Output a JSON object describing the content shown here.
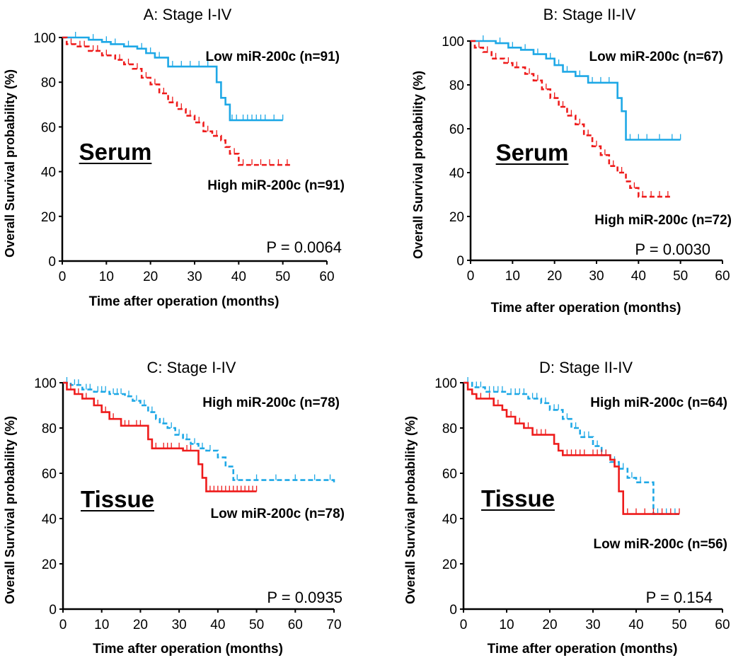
{
  "figure": {
    "colors": {
      "blue": "#1ea8e6",
      "red": "#ee1c1c"
    }
  },
  "chart_data": [
    {
      "type": "line",
      "panel": "A",
      "title": "A: Stage I-IV",
      "xlabel": "Time after operation (months)",
      "ylabel": "Overall Survival probability (%)",
      "xlim": [
        0,
        60
      ],
      "ylim": [
        0,
        100
      ],
      "xticks": [
        0,
        10,
        20,
        30,
        40,
        50,
        60
      ],
      "yticks": [
        0,
        20,
        40,
        60,
        80,
        100
      ],
      "sample_label": "Serum",
      "p_value": "P = 0.0064",
      "series": [
        {
          "name": "Low miR-200c (n=91)",
          "color": "#1ea8e6",
          "dash": false,
          "x": [
            0,
            6,
            9,
            11,
            14,
            17,
            19,
            21,
            24,
            34,
            35,
            36,
            37,
            38,
            50
          ],
          "y": [
            100,
            99,
            98,
            97,
            96,
            95,
            93,
            91,
            87,
            87,
            80,
            73,
            70,
            63,
            63
          ],
          "censor_x": [
            3,
            7,
            10,
            12,
            15,
            18,
            20,
            22,
            25,
            27,
            29,
            31,
            33,
            38.5,
            39.5,
            41,
            42,
            43,
            44,
            45,
            46,
            48,
            50
          ]
        },
        {
          "name": "High miR-200c (n=91)",
          "color": "#ee1c1c",
          "dash": true,
          "x": [
            0,
            1,
            3,
            6,
            9,
            12,
            14,
            16,
            18,
            20,
            22,
            24,
            26,
            28,
            30,
            32,
            34,
            36,
            37,
            38,
            40,
            52
          ],
          "y": [
            100,
            97,
            96,
            94,
            92,
            90,
            88,
            86,
            82,
            79,
            75,
            71,
            68,
            65,
            62,
            58,
            56,
            54,
            51,
            48,
            43,
            43
          ],
          "censor_x": [
            2,
            4,
            5,
            7,
            8,
            10,
            13,
            15,
            17,
            19,
            21,
            23,
            25,
            27,
            29,
            31,
            33,
            35,
            39,
            41,
            43,
            45,
            47,
            49,
            51
          ]
        }
      ],
      "series_label_positions": [
        "upper-right",
        "lower-right"
      ]
    },
    {
      "type": "line",
      "panel": "B",
      "title": "B: Stage II-IV",
      "xlabel": "Time after operation (months)",
      "ylabel": "Overall Survival probability (%)",
      "xlim": [
        0,
        60
      ],
      "ylim": [
        0,
        100
      ],
      "xticks": [
        0,
        10,
        20,
        30,
        40,
        50,
        60
      ],
      "yticks": [
        0,
        20,
        40,
        60,
        80,
        100
      ],
      "sample_label": "Serum",
      "p_value": "P = 0.0030",
      "series": [
        {
          "name": "Low miR-200c (n=67)",
          "color": "#1ea8e6",
          "dash": false,
          "x": [
            0,
            6,
            9,
            12,
            15,
            18,
            20,
            22,
            25,
            28,
            34,
            35,
            36,
            37,
            50
          ],
          "y": [
            100,
            99,
            97,
            96,
            94,
            92,
            89,
            86,
            84,
            81,
            81,
            74,
            68,
            55,
            55
          ],
          "censor_x": [
            3,
            7,
            10,
            13,
            16,
            19,
            21,
            23,
            26,
            29,
            31,
            33,
            38,
            40,
            42,
            45,
            48,
            50
          ]
        },
        {
          "name": "High miR-200c (n=72)",
          "color": "#ee1c1c",
          "dash": true,
          "x": [
            0,
            1,
            3,
            5,
            8,
            10,
            13,
            15,
            17,
            19,
            21,
            23,
            25,
            27,
            29,
            31,
            33,
            35,
            37,
            38,
            40,
            48
          ],
          "y": [
            100,
            97,
            95,
            92,
            90,
            88,
            85,
            82,
            78,
            74,
            70,
            66,
            62,
            57,
            52,
            48,
            43,
            40,
            36,
            33,
            29,
            29
          ],
          "censor_x": [
            2,
            4,
            6,
            9,
            11,
            14,
            16,
            18,
            20,
            22,
            24,
            26,
            28,
            30,
            32,
            34,
            36,
            39,
            41,
            43,
            45,
            47
          ]
        }
      ],
      "series_label_positions": [
        "upper-right",
        "lower-right"
      ]
    },
    {
      "type": "line",
      "panel": "C",
      "title": "C: Stage I-IV",
      "xlabel": "Time after operation (months)",
      "ylabel": "Overall Survival probability (%)",
      "xlim": [
        0,
        70
      ],
      "ylim": [
        0,
        100
      ],
      "xticks": [
        0,
        10,
        20,
        30,
        40,
        50,
        60,
        70
      ],
      "yticks": [
        0,
        20,
        40,
        60,
        80,
        100
      ],
      "sample_label": "Tissue",
      "p_value": "P = 0.0935",
      "series": [
        {
          "name": "High miR-200c (n=78)",
          "color": "#1ea8e6",
          "dash": true,
          "x": [
            0,
            2,
            5,
            8,
            12,
            16,
            18,
            20,
            22,
            24,
            25,
            27,
            29,
            31,
            33,
            35,
            37,
            40,
            42,
            44,
            70
          ],
          "y": [
            100,
            99,
            97,
            96,
            95,
            94,
            92,
            90,
            87,
            84,
            82,
            80,
            77,
            75,
            73,
            71,
            70,
            67,
            63,
            57,
            56
          ],
          "censor_x": [
            1,
            3,
            4,
            6,
            7,
            9,
            10,
            11,
            13,
            14,
            15,
            17,
            19,
            21,
            23,
            26,
            28,
            30,
            32,
            34,
            36,
            38,
            45,
            50,
            55,
            60,
            65,
            69
          ]
        },
        {
          "name": "Low miR-200c (n=78)",
          "color": "#ee1c1c",
          "dash": false,
          "x": [
            0,
            1,
            3,
            5,
            8,
            10,
            12,
            15,
            18,
            22,
            23,
            25,
            29,
            31,
            35,
            36,
            37,
            50
          ],
          "y": [
            100,
            97,
            95,
            93,
            90,
            87,
            84,
            81,
            81,
            75,
            71,
            71,
            71,
            70,
            64,
            58,
            52,
            52
          ],
          "censor_x": [
            2,
            4,
            6,
            9,
            11,
            13,
            16,
            17,
            19,
            20,
            24,
            26,
            27,
            28,
            30,
            32,
            33,
            38,
            39,
            40,
            41,
            42,
            43,
            44,
            45,
            46,
            47,
            48,
            49,
            50
          ]
        }
      ],
      "series_label_positions": [
        "upper-right",
        "lower-right"
      ]
    },
    {
      "type": "line",
      "panel": "D",
      "title": "D: Stage II-IV",
      "xlabel": "Time after operation (months)",
      "ylabel": "Overall Survival probability (%)",
      "xlim": [
        0,
        60
      ],
      "ylim": [
        0,
        100
      ],
      "xticks": [
        0,
        10,
        20,
        30,
        40,
        50,
        60
      ],
      "yticks": [
        0,
        20,
        40,
        60,
        80,
        100
      ],
      "sample_label": "Tissue",
      "p_value": "P = 0.154",
      "series": [
        {
          "name": "High miR-200c (n=64)",
          "color": "#1ea8e6",
          "dash": true,
          "x": [
            0,
            2,
            5,
            10,
            15,
            18,
            20,
            23,
            25,
            27,
            30,
            32,
            34,
            36,
            38,
            40,
            43,
            44,
            50
          ],
          "y": [
            100,
            98,
            96,
            95,
            93,
            91,
            88,
            84,
            80,
            76,
            72,
            68,
            65,
            62,
            58,
            56,
            56,
            42,
            42
          ],
          "censor_x": [
            1,
            3,
            4,
            6,
            7,
            8,
            9,
            11,
            12,
            13,
            14,
            16,
            17,
            19,
            21,
            22,
            24,
            26,
            28,
            29,
            31,
            33,
            35,
            37,
            39,
            41,
            45,
            47,
            49
          ]
        },
        {
          "name": "Low miR-200c (n=56)",
          "color": "#ee1c1c",
          "dash": false,
          "x": [
            0,
            1,
            2,
            3,
            5,
            7,
            9,
            10,
            12,
            14,
            16,
            20,
            21,
            22,
            23,
            29,
            34,
            35,
            36,
            37,
            50
          ],
          "y": [
            100,
            97,
            95,
            93,
            93,
            90,
            88,
            85,
            82,
            80,
            77,
            77,
            73,
            70,
            68,
            68,
            66,
            63,
            52,
            42,
            42
          ],
          "censor_x": [
            4,
            6,
            8,
            11,
            13,
            15,
            17,
            18,
            19,
            24,
            25,
            26,
            27,
            28,
            30,
            31,
            32,
            33,
            38,
            40,
            42,
            44,
            46,
            48,
            50
          ]
        }
      ],
      "series_label_positions": [
        "upper-right",
        "lower-right"
      ]
    }
  ]
}
